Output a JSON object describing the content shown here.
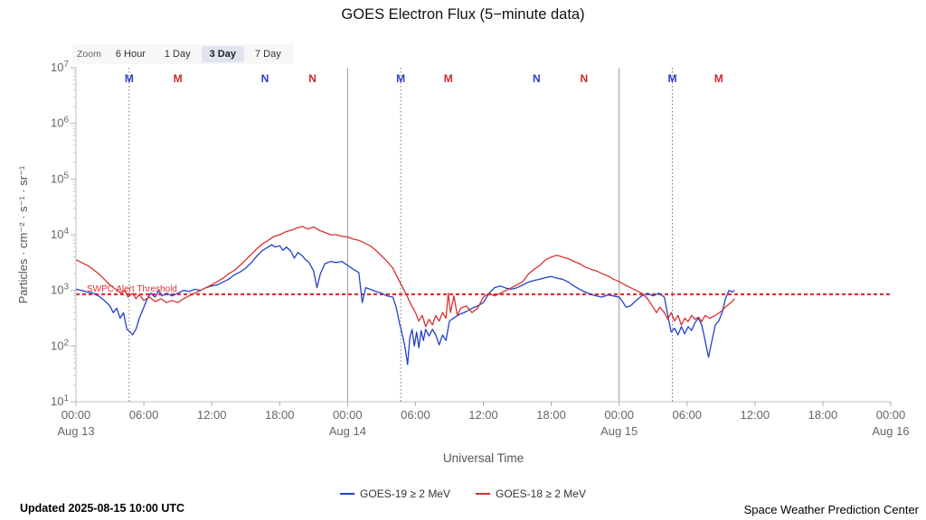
{
  "page": {
    "title": "GOES Electron Flux (5−minute data)",
    "updated": "Updated 2025-08-15 10:00 UTC",
    "credit": "Space Weather Prediction Center"
  },
  "zoom_bar": {
    "label": "Zoom",
    "options": [
      {
        "label": "6 Hour",
        "selected": false
      },
      {
        "label": "1 Day",
        "selected": false
      },
      {
        "label": "3 Day",
        "selected": true
      },
      {
        "label": "7 Day",
        "selected": false
      }
    ]
  },
  "legend": {
    "items": [
      {
        "label": "GOES-19 ≥ 2 MeV",
        "color": "#2442c8"
      },
      {
        "label": "GOES-18 ≥ 2 MeV",
        "color": "#d93030"
      }
    ]
  },
  "chart_data": {
    "type": "line",
    "title": "GOES Electron Flux (5−minute data)",
    "x_axis": {
      "label": "Universal Time",
      "total_hours": 72,
      "tick_interval_hours": 6,
      "tick_labels": [
        "00:00",
        "06:00",
        "12:00",
        "18:00",
        "00:00",
        "06:00",
        "12:00",
        "18:00",
        "00:00",
        "06:00",
        "12:00",
        "18:00",
        "00:00"
      ],
      "day_labels": [
        {
          "hour": 0,
          "label": "Aug 13"
        },
        {
          "hour": 24,
          "label": "Aug 14"
        },
        {
          "hour": 48,
          "label": "Aug 15"
        },
        {
          "hour": 72,
          "label": "Aug 16"
        }
      ]
    },
    "y_axis": {
      "label": "Particles · cm⁻² · s⁻¹ · sr⁻¹",
      "scale": "log",
      "tick_base": "10",
      "tick_exponents": [
        1,
        2,
        3,
        4,
        5,
        6,
        7
      ],
      "min_exponent": 1,
      "max_exponent": 7
    },
    "threshold": {
      "label": "SWPC Alert Threshold",
      "log10_value": 2.93,
      "color": "#e03131"
    },
    "gridlines": {
      "solid_vertical_hours": [
        24,
        48
      ],
      "dotted_vertical_hours": [
        4.7,
        28.7,
        52.7
      ]
    },
    "markers": [
      {
        "hour": 4.7,
        "label": "M",
        "color": "#2b3fc4"
      },
      {
        "hour": 9.0,
        "label": "M",
        "color": "#cc2929"
      },
      {
        "hour": 16.7,
        "label": "N",
        "color": "#2b3fc4"
      },
      {
        "hour": 20.9,
        "label": "N",
        "color": "#cc2929"
      },
      {
        "hour": 28.7,
        "label": "M",
        "color": "#2b3fc4"
      },
      {
        "hour": 32.9,
        "label": "M",
        "color": "#cc2929"
      },
      {
        "hour": 40.7,
        "label": "N",
        "color": "#2b3fc4"
      },
      {
        "hour": 44.9,
        "label": "N",
        "color": "#cc2929"
      },
      {
        "hour": 52.7,
        "label": "M",
        "color": "#2b3fc4"
      },
      {
        "hour": 56.8,
        "label": "M",
        "color": "#cc2929"
      }
    ],
    "series": [
      {
        "name": "GOES-19 ≥ 2 MeV",
        "color": "#2442c8",
        "points": [
          [
            0,
            3.02
          ],
          [
            0.5,
            3.0
          ],
          [
            1,
            2.97
          ],
          [
            1.5,
            2.95
          ],
          [
            2,
            2.9
          ],
          [
            2.5,
            2.82
          ],
          [
            3,
            2.72
          ],
          [
            3.3,
            2.6
          ],
          [
            3.6,
            2.68
          ],
          [
            3.9,
            2.5
          ],
          [
            4.2,
            2.6
          ],
          [
            4.5,
            2.3
          ],
          [
            4.8,
            2.25
          ],
          [
            5,
            2.2
          ],
          [
            5.3,
            2.3
          ],
          [
            5.6,
            2.5
          ],
          [
            6,
            2.7
          ],
          [
            6.3,
            2.85
          ],
          [
            6.6,
            2.95
          ],
          [
            7,
            2.88
          ],
          [
            7.3,
            3.0
          ],
          [
            7.6,
            2.9
          ],
          [
            8,
            2.95
          ],
          [
            8.5,
            2.9
          ],
          [
            9,
            2.95
          ],
          [
            9.5,
            3.0
          ],
          [
            10,
            2.98
          ],
          [
            10.5,
            3.02
          ],
          [
            11,
            3.0
          ],
          [
            11.5,
            3.05
          ],
          [
            12,
            3.08
          ],
          [
            12.5,
            3.1
          ],
          [
            13,
            3.15
          ],
          [
            13.5,
            3.2
          ],
          [
            14,
            3.28
          ],
          [
            14.5,
            3.33
          ],
          [
            15,
            3.4
          ],
          [
            15.5,
            3.5
          ],
          [
            16,
            3.62
          ],
          [
            16.5,
            3.72
          ],
          [
            17,
            3.78
          ],
          [
            17.3,
            3.82
          ],
          [
            17.6,
            3.78
          ],
          [
            18,
            3.8
          ],
          [
            18.3,
            3.72
          ],
          [
            18.6,
            3.78
          ],
          [
            19,
            3.7
          ],
          [
            19.3,
            3.58
          ],
          [
            19.6,
            3.68
          ],
          [
            20,
            3.62
          ],
          [
            20.3,
            3.55
          ],
          [
            20.6,
            3.5
          ],
          [
            21,
            3.35
          ],
          [
            21.3,
            3.05
          ],
          [
            21.6,
            3.3
          ],
          [
            22,
            3.48
          ],
          [
            22.5,
            3.52
          ],
          [
            23,
            3.5
          ],
          [
            23.5,
            3.52
          ],
          [
            24,
            3.45
          ],
          [
            24.5,
            3.38
          ],
          [
            25,
            3.32
          ],
          [
            25.3,
            2.78
          ],
          [
            25.6,
            3.05
          ],
          [
            26,
            3.02
          ],
          [
            26.5,
            2.98
          ],
          [
            27,
            2.95
          ],
          [
            27.5,
            2.9
          ],
          [
            28,
            2.88
          ],
          [
            28.3,
            2.7
          ],
          [
            28.6,
            2.4
          ],
          [
            28.9,
            2.15
          ],
          [
            29.1,
            1.95
          ],
          [
            29.3,
            1.67
          ],
          [
            29.5,
            2.15
          ],
          [
            29.7,
            2.3
          ],
          [
            29.9,
            2.0
          ],
          [
            30.1,
            2.25
          ],
          [
            30.3,
            1.97
          ],
          [
            30.5,
            2.28
          ],
          [
            30.7,
            2.1
          ],
          [
            30.9,
            2.3
          ],
          [
            31.2,
            2.18
          ],
          [
            31.5,
            2.3
          ],
          [
            31.8,
            2.2
          ],
          [
            32.1,
            2.02
          ],
          [
            32.4,
            2.2
          ],
          [
            32.7,
            2.1
          ],
          [
            33,
            2.45
          ],
          [
            33.5,
            2.52
          ],
          [
            34,
            2.58
          ],
          [
            34.5,
            2.62
          ],
          [
            35,
            2.68
          ],
          [
            35.5,
            2.72
          ],
          [
            36,
            2.78
          ],
          [
            36.5,
            2.95
          ],
          [
            37,
            3.05
          ],
          [
            37.5,
            3.08
          ],
          [
            38,
            3.04
          ],
          [
            38.5,
            3.02
          ],
          [
            39,
            3.05
          ],
          [
            39.5,
            3.1
          ],
          [
            40,
            3.15
          ],
          [
            40.5,
            3.18
          ],
          [
            41,
            3.2
          ],
          [
            41.5,
            3.23
          ],
          [
            42,
            3.25
          ],
          [
            42.5,
            3.22
          ],
          [
            43,
            3.2
          ],
          [
            43.5,
            3.15
          ],
          [
            44,
            3.08
          ],
          [
            44.5,
            3.02
          ],
          [
            45,
            2.97
          ],
          [
            45.5,
            2.93
          ],
          [
            46,
            2.9
          ],
          [
            46.5,
            2.88
          ],
          [
            47,
            2.92
          ],
          [
            47.5,
            2.9
          ],
          [
            48,
            2.88
          ],
          [
            48.3,
            2.8
          ],
          [
            48.6,
            2.7
          ],
          [
            49,
            2.72
          ],
          [
            49.5,
            2.82
          ],
          [
            50,
            2.9
          ],
          [
            50.5,
            2.95
          ],
          [
            51,
            2.9
          ],
          [
            51.5,
            2.95
          ],
          [
            52,
            2.88
          ],
          [
            52.3,
            2.55
          ],
          [
            52.6,
            2.25
          ],
          [
            52.9,
            2.32
          ],
          [
            53.2,
            2.2
          ],
          [
            53.5,
            2.35
          ],
          [
            53.8,
            2.22
          ],
          [
            54.1,
            2.35
          ],
          [
            54.4,
            2.28
          ],
          [
            54.7,
            2.42
          ],
          [
            55,
            2.5
          ],
          [
            55.3,
            2.38
          ],
          [
            55.6,
            2.1
          ],
          [
            55.9,
            1.8
          ],
          [
            56.2,
            2.1
          ],
          [
            56.5,
            2.38
          ],
          [
            56.8,
            2.45
          ],
          [
            57.1,
            2.6
          ],
          [
            57.4,
            2.85
          ],
          [
            57.7,
            3.0
          ],
          [
            58,
            2.97
          ],
          [
            58.2,
            3.0
          ]
        ]
      },
      {
        "name": "GOES-18 ≥ 2 MeV",
        "color": "#d93030",
        "points": [
          [
            0,
            3.55
          ],
          [
            0.5,
            3.5
          ],
          [
            1,
            3.45
          ],
          [
            1.5,
            3.38
          ],
          [
            2,
            3.3
          ],
          [
            2.5,
            3.2
          ],
          [
            3,
            3.1
          ],
          [
            3.5,
            3.02
          ],
          [
            4,
            2.95
          ],
          [
            4.3,
            3.0
          ],
          [
            4.6,
            2.88
          ],
          [
            5,
            2.95
          ],
          [
            5.3,
            2.85
          ],
          [
            5.6,
            2.92
          ],
          [
            6,
            2.82
          ],
          [
            6.5,
            2.88
          ],
          [
            7,
            2.8
          ],
          [
            7.5,
            2.85
          ],
          [
            8,
            2.78
          ],
          [
            8.5,
            2.82
          ],
          [
            9,
            2.78
          ],
          [
            9.5,
            2.85
          ],
          [
            10,
            2.9
          ],
          [
            10.5,
            2.95
          ],
          [
            11,
            3.0
          ],
          [
            11.5,
            3.05
          ],
          [
            12,
            3.1
          ],
          [
            12.5,
            3.16
          ],
          [
            13,
            3.22
          ],
          [
            13.5,
            3.3
          ],
          [
            14,
            3.36
          ],
          [
            14.5,
            3.45
          ],
          [
            15,
            3.55
          ],
          [
            15.5,
            3.65
          ],
          [
            16,
            3.75
          ],
          [
            16.5,
            3.84
          ],
          [
            17,
            3.9
          ],
          [
            17.5,
            3.97
          ],
          [
            18,
            4.0
          ],
          [
            18.5,
            4.05
          ],
          [
            19,
            4.08
          ],
          [
            19.5,
            4.12
          ],
          [
            20,
            4.15
          ],
          [
            20.5,
            4.1
          ],
          [
            21,
            4.14
          ],
          [
            21.5,
            4.08
          ],
          [
            22,
            4.04
          ],
          [
            22.5,
            4.0
          ],
          [
            23,
            4.0
          ],
          [
            23.5,
            3.97
          ],
          [
            24,
            3.96
          ],
          [
            24.5,
            3.92
          ],
          [
            25,
            3.9
          ],
          [
            25.5,
            3.85
          ],
          [
            26,
            3.8
          ],
          [
            26.5,
            3.72
          ],
          [
            27,
            3.62
          ],
          [
            27.5,
            3.52
          ],
          [
            28,
            3.4
          ],
          [
            28.5,
            3.2
          ],
          [
            29,
            3.0
          ],
          [
            29.3,
            2.88
          ],
          [
            29.6,
            2.75
          ],
          [
            30,
            2.6
          ],
          [
            30.3,
            2.45
          ],
          [
            30.6,
            2.55
          ],
          [
            30.9,
            2.35
          ],
          [
            31.2,
            2.48
          ],
          [
            31.5,
            2.38
          ],
          [
            31.8,
            2.55
          ],
          [
            32.1,
            2.45
          ],
          [
            32.4,
            2.6
          ],
          [
            32.7,
            2.5
          ],
          [
            32.9,
            2.95
          ],
          [
            33.1,
            2.6
          ],
          [
            33.4,
            2.9
          ],
          [
            33.7,
            2.55
          ],
          [
            34,
            2.68
          ],
          [
            34.5,
            2.72
          ],
          [
            35,
            2.6
          ],
          [
            35.5,
            2.68
          ],
          [
            36,
            2.88
          ],
          [
            36.5,
            2.95
          ],
          [
            37,
            2.9
          ],
          [
            37.5,
            2.95
          ],
          [
            38,
            3.0
          ],
          [
            38.5,
            3.05
          ],
          [
            39,
            3.1
          ],
          [
            39.5,
            3.16
          ],
          [
            40,
            3.3
          ],
          [
            40.5,
            3.38
          ],
          [
            41,
            3.45
          ],
          [
            41.5,
            3.55
          ],
          [
            42,
            3.6
          ],
          [
            42.5,
            3.63
          ],
          [
            43,
            3.6
          ],
          [
            43.5,
            3.57
          ],
          [
            44,
            3.52
          ],
          [
            44.5,
            3.48
          ],
          [
            45,
            3.42
          ],
          [
            45.5,
            3.38
          ],
          [
            46,
            3.35
          ],
          [
            46.5,
            3.3
          ],
          [
            47,
            3.26
          ],
          [
            47.5,
            3.2
          ],
          [
            48,
            3.16
          ],
          [
            48.5,
            3.1
          ],
          [
            49,
            3.05
          ],
          [
            49.5,
            3.0
          ],
          [
            50,
            2.95
          ],
          [
            50.5,
            2.85
          ],
          [
            51,
            2.7
          ],
          [
            51.3,
            2.6
          ],
          [
            51.6,
            2.7
          ],
          [
            52,
            2.6
          ],
          [
            52.3,
            2.48
          ],
          [
            52.6,
            2.6
          ],
          [
            52.9,
            2.45
          ],
          [
            53.2,
            2.55
          ],
          [
            53.5,
            2.38
          ],
          [
            53.8,
            2.5
          ],
          [
            54.1,
            2.44
          ],
          [
            54.4,
            2.55
          ],
          [
            54.7,
            2.48
          ],
          [
            55,
            2.52
          ],
          [
            55.3,
            2.44
          ],
          [
            55.6,
            2.55
          ],
          [
            56,
            2.5
          ],
          [
            56.5,
            2.55
          ],
          [
            57,
            2.62
          ],
          [
            57.5,
            2.72
          ],
          [
            58,
            2.8
          ],
          [
            58.2,
            2.85
          ]
        ]
      }
    ]
  }
}
